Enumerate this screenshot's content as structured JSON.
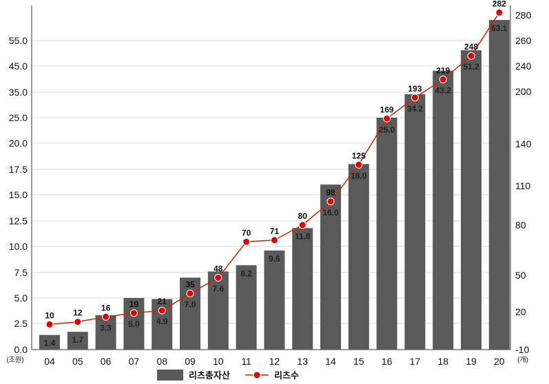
{
  "chart_data": {
    "type": "bar",
    "categories": [
      "04",
      "05",
      "06",
      "07",
      "08",
      "09",
      "10",
      "11",
      "12",
      "13",
      "14",
      "15",
      "16",
      "17",
      "18",
      "19",
      "20"
    ],
    "series": [
      {
        "name": "리츠총자산",
        "type": "bar",
        "axis": "left",
        "values": [
          1.4,
          1.7,
          3.3,
          5.0,
          4.9,
          7.0,
          7.6,
          8.2,
          9.6,
          11.8,
          16.0,
          18.0,
          25.0,
          34.2,
          43.2,
          51.2,
          63.1
        ],
        "labels": [
          "1.4",
          "1.7",
          "3.3",
          "5.0",
          "4.9",
          "7.0",
          "7.6",
          "8.2",
          "9.6",
          "11.8",
          "16.0",
          "18.0",
          "25.0",
          "34.2",
          "43.2",
          "51.2",
          "63.1"
        ],
        "color": "#5a5a5a"
      },
      {
        "name": "리츠수",
        "type": "line",
        "axis": "right",
        "values": [
          10,
          12,
          16,
          19,
          21,
          35,
          48,
          70,
          71,
          80,
          98,
          125,
          169,
          193,
          219,
          248,
          282
        ],
        "labels": [
          "10",
          "12",
          "16",
          "19",
          "21",
          "35",
          "48",
          "70",
          "71",
          "80",
          "98",
          "125",
          "169",
          "193",
          "219",
          "248",
          "282"
        ],
        "color": "#cc2200"
      }
    ],
    "left_axis": {
      "ticks": [
        "0.0",
        "2.5",
        "5.0",
        "7.5",
        "10.0",
        "12.5",
        "15.0",
        "17.5",
        "20.0",
        "25.0",
        "35.0",
        "45.0",
        "55.0"
      ],
      "unit": "(조원)"
    },
    "right_axis": {
      "ticks": [
        "-10",
        "20",
        "50",
        "80",
        "110",
        "140",
        "200",
        "240",
        "260",
        "280"
      ],
      "unit": "(개)"
    },
    "grid": true,
    "legend_position": "bottom-center"
  }
}
